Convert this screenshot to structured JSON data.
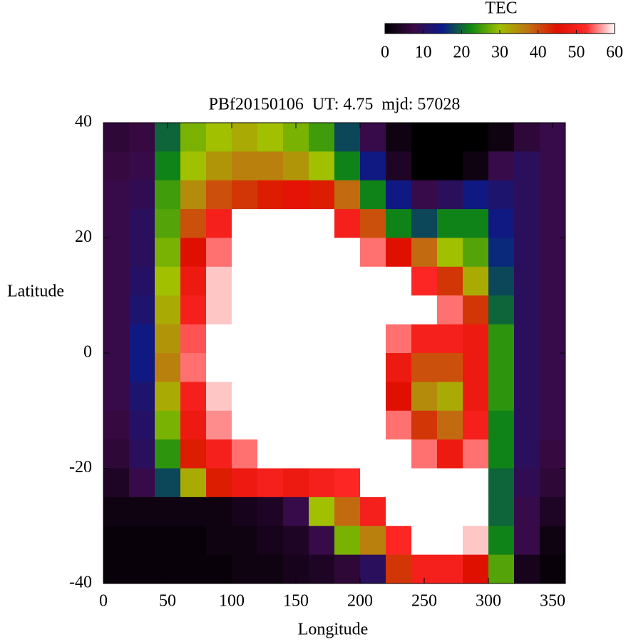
{
  "chart_data": {
    "type": "heatmap",
    "title": "PBf20150106  UT: 4.75  mjd: 57028",
    "x_label": "Longitude",
    "y_label": "Latitude",
    "colorbar_label": "TEC",
    "xlim": [
      0,
      360
    ],
    "xticks": [
      0,
      50,
      100,
      150,
      200,
      250,
      300,
      350
    ],
    "ylim": [
      -40,
      40
    ],
    "yticks": [
      -40,
      -20,
      0,
      20,
      40
    ],
    "zlim": [
      0,
      60
    ],
    "zticks": [
      0,
      10,
      20,
      30,
      40,
      50,
      60
    ],
    "palette": [
      "#000000",
      "#3a0a45",
      "#0a1a8a",
      "#108a10",
      "#a0c000",
      "#c07010",
      "#e01000",
      "#ff2828",
      "#ffffff"
    ],
    "x": [
      10,
      30,
      50,
      70,
      90,
      110,
      130,
      150,
      170,
      190,
      210,
      230,
      250,
      270,
      290,
      310,
      330,
      350
    ],
    "y": [
      37.5,
      32.5,
      27.5,
      22.5,
      17.5,
      12.5,
      7.5,
      2.5,
      -2.5,
      -7.5,
      -12.5,
      -17.5,
      -22.5,
      -27.5,
      -32.5,
      -37.5
    ],
    "z": [
      [
        6,
        7,
        20,
        28,
        30,
        32,
        30,
        28,
        25,
        18,
        8,
        2,
        0,
        0,
        0,
        2,
        6,
        8
      ],
      [
        7,
        8,
        22,
        30,
        34,
        36,
        36,
        34,
        30,
        22,
        14,
        4,
        0,
        0,
        2,
        8,
        10,
        8
      ],
      [
        8,
        9,
        25,
        35,
        40,
        42,
        44,
        46,
        44,
        38,
        22,
        14,
        8,
        10,
        14,
        12,
        10,
        8
      ],
      [
        8,
        10,
        26,
        40,
        50,
        60,
        60,
        60,
        60,
        50,
        40,
        22,
        18,
        22,
        22,
        14,
        10,
        8
      ],
      [
        8,
        10,
        28,
        45,
        55,
        60,
        60,
        60,
        60,
        60,
        55,
        45,
        38,
        30,
        26,
        16,
        10,
        8
      ],
      [
        8,
        11,
        30,
        48,
        58,
        60,
        60,
        60,
        60,
        60,
        60,
        60,
        52,
        42,
        32,
        18,
        10,
        8
      ],
      [
        8,
        12,
        32,
        50,
        58,
        60,
        60,
        60,
        60,
        60,
        60,
        60,
        60,
        55,
        42,
        20,
        10,
        8
      ],
      [
        8,
        14,
        34,
        54,
        60,
        60,
        60,
        60,
        60,
        60,
        60,
        55,
        50,
        50,
        48,
        24,
        10,
        8
      ],
      [
        8,
        14,
        36,
        55,
        60,
        60,
        60,
        60,
        60,
        60,
        60,
        48,
        40,
        40,
        48,
        24,
        10,
        8
      ],
      [
        8,
        12,
        32,
        50,
        58,
        60,
        60,
        60,
        60,
        60,
        60,
        45,
        35,
        32,
        48,
        24,
        10,
        8
      ],
      [
        7,
        11,
        28,
        48,
        56,
        60,
        60,
        60,
        60,
        60,
        60,
        55,
        42,
        38,
        50,
        22,
        10,
        8
      ],
      [
        6,
        10,
        24,
        44,
        50,
        55,
        60,
        60,
        60,
        60,
        60,
        60,
        55,
        48,
        55,
        22,
        10,
        7
      ],
      [
        4,
        8,
        18,
        32,
        44,
        48,
        50,
        48,
        50,
        52,
        60,
        60,
        60,
        60,
        60,
        20,
        9,
        6
      ],
      [
        2,
        2,
        2,
        2,
        2,
        3,
        4,
        8,
        30,
        38,
        50,
        60,
        60,
        60,
        60,
        20,
        8,
        4
      ],
      [
        1,
        1,
        1,
        1,
        2,
        2,
        3,
        4,
        8,
        28,
        36,
        52,
        60,
        60,
        58,
        22,
        8,
        2
      ],
      [
        1,
        1,
        1,
        1,
        1,
        2,
        2,
        3,
        4,
        6,
        10,
        42,
        50,
        50,
        45,
        26,
        3,
        1
      ]
    ]
  }
}
